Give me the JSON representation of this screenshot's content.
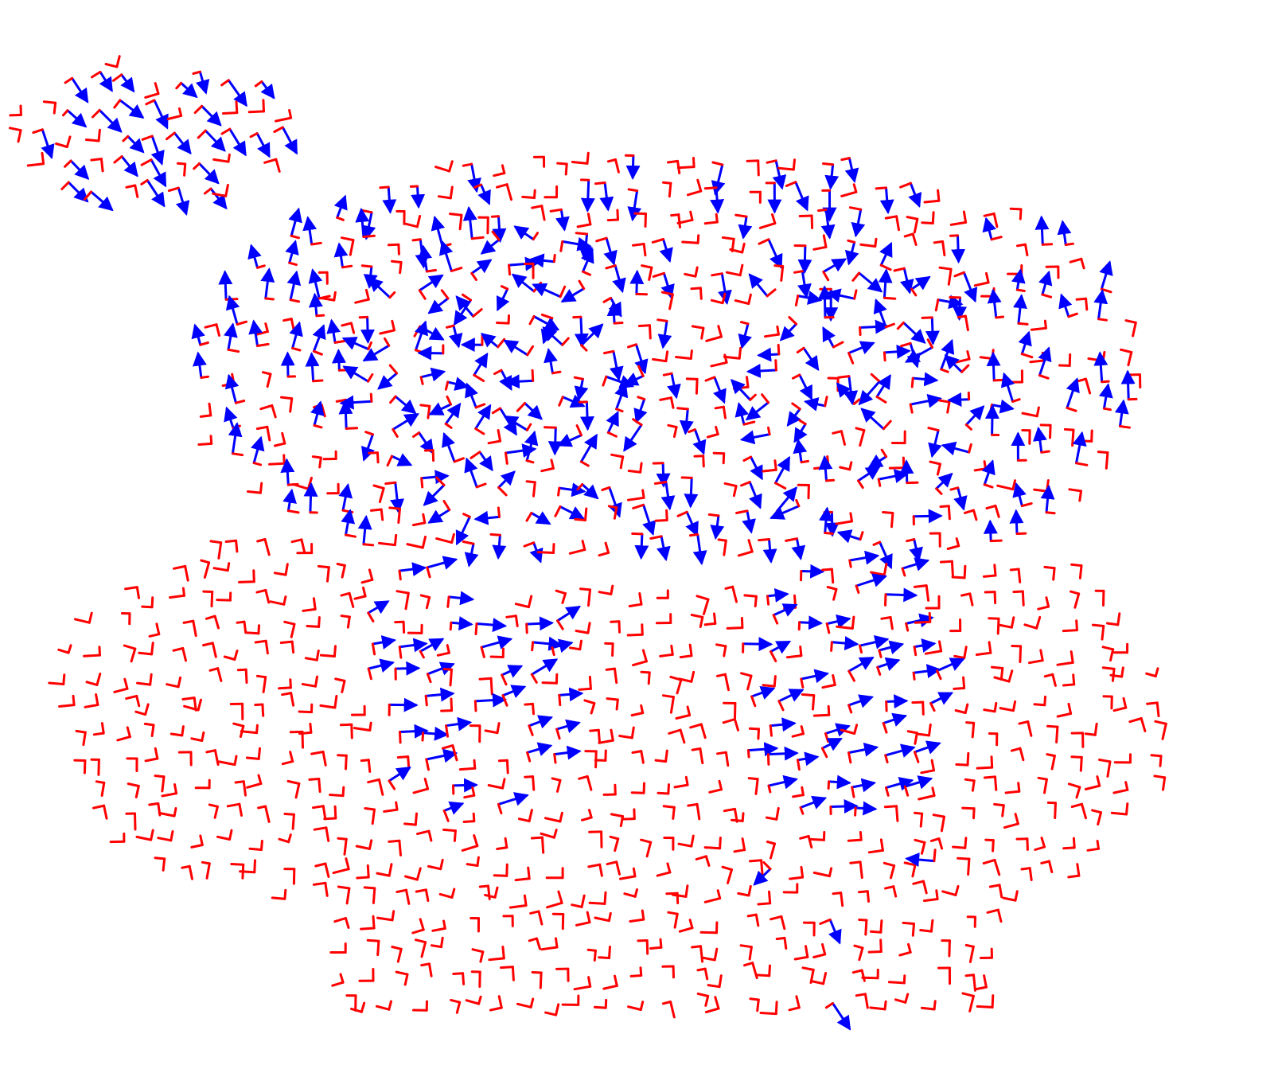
{
  "figure": {
    "description_kind": "vector field glyphs on 3D surface (frame field visualization)",
    "glyph_style": "two-segment frame arrows",
    "colors": {
      "primary_vector": "#0000ff",
      "secondary_vector": "#ff0000",
      "background": "#ffffff"
    },
    "regions": [
      {
        "name": "ear",
        "primary_direction": "down-right",
        "primary_share": 0.7
      },
      {
        "name": "upper-body",
        "primary_direction": "down",
        "primary_share": 0.4
      },
      {
        "name": "left-patch",
        "primary_direction": "mixed",
        "primary_share": 0.9
      },
      {
        "name": "right-patch",
        "primary_direction": "mixed",
        "primary_share": 0.8
      },
      {
        "name": "left-side",
        "primary_direction": "up",
        "primary_share": 0.6
      },
      {
        "name": "right-side",
        "primary_direction": "up",
        "primary_share": 0.5
      },
      {
        "name": "lower-left-lobe",
        "primary_direction": "none",
        "primary_share": 0.0
      },
      {
        "name": "lower-right-lobe",
        "primary_direction": "none",
        "primary_share": 0.0
      },
      {
        "name": "center-swirl-left",
        "primary_direction": "right",
        "primary_share": 0.6
      },
      {
        "name": "center-swirl-right",
        "primary_direction": "right",
        "primary_share": 0.55
      },
      {
        "name": "base",
        "primary_direction": "none",
        "primary_share": 0.03
      }
    ]
  }
}
